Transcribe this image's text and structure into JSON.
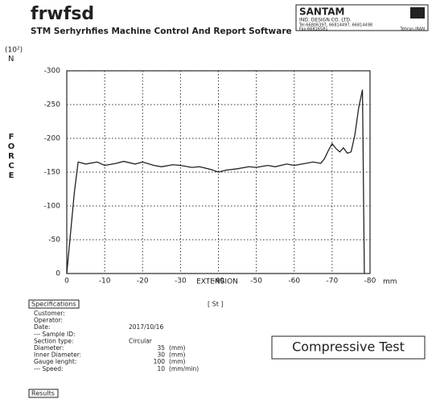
{
  "header": {
    "title": "frwfsd",
    "subtitle": "STM Serhyrhfies Machine Control And Report Software",
    "logo": {
      "name": "SANTAM",
      "company": "IND. DESIGN CO. LTD.",
      "tel": "Tel:66806397, 66814497, 66814498",
      "fax": "Fax:66816581",
      "city": "Tehran-IRAN"
    }
  },
  "chart_data": {
    "type": "line",
    "y_label": "FORCE",
    "y_unit": "N",
    "y_scale": "(10²)",
    "x_label": "EXTENSION",
    "x_unit": "mm",
    "x": [
      0,
      -1,
      -2,
      -3,
      -5,
      -8,
      -10,
      -13,
      -15,
      -18,
      -20,
      -23,
      -25,
      -28,
      -30,
      -33,
      -35,
      -38,
      -40,
      -42,
      -45,
      -48,
      -50,
      -53,
      -55,
      -58,
      -60,
      -63,
      -65,
      -67,
      -68,
      -69,
      -70,
      -71,
      -72,
      -73,
      -74,
      -75,
      -76,
      -77,
      -78,
      -78.5
    ],
    "series": [
      {
        "name": "Force",
        "color": "#222222",
        "values": [
          0,
          -60,
          -120,
          -165,
          -162,
          -165,
          -160,
          -163,
          -166,
          -162,
          -165,
          -160,
          -158,
          -161,
          -160,
          -157,
          -158,
          -154,
          -150,
          -153,
          -155,
          -158,
          -157,
          -160,
          -158,
          -162,
          -160,
          -163,
          -165,
          -163,
          -170,
          -182,
          -192,
          -185,
          -180,
          -186,
          -178,
          -180,
          -205,
          -245,
          -272,
          0
        ]
      }
    ],
    "xlim": [
      0,
      -80
    ],
    "ylim": [
      0,
      -300
    ],
    "xticks": [
      0,
      -10,
      -20,
      -30,
      -40,
      -50,
      -60,
      -70,
      -80
    ],
    "yticks": [
      0,
      -50,
      -100,
      -150,
      -200,
      -250,
      -300
    ],
    "grid": true
  },
  "specifications": {
    "title": "Specifications",
    "sample": "[ St ]",
    "rows": [
      {
        "label": "Customer:"
      },
      {
        "label": "Operator:"
      },
      {
        "label": "Date:",
        "value": "2017/10/16"
      },
      {
        "label": "--- Sample ID:"
      },
      {
        "label": "Section type:",
        "value": "Circular"
      },
      {
        "label": "Diameter:",
        "value": "35",
        "unit": "(mm)"
      },
      {
        "label": "Inner Diameter:",
        "value": "30",
        "unit": "(mm)"
      },
      {
        "label": "Gauge lenght:",
        "value": "100",
        "unit": "(mm)"
      },
      {
        "label": "--- Speed:",
        "value": "10",
        "unit": "(mm/min)"
      }
    ],
    "test": "Compressive Test"
  },
  "results": {
    "title": "Results"
  }
}
